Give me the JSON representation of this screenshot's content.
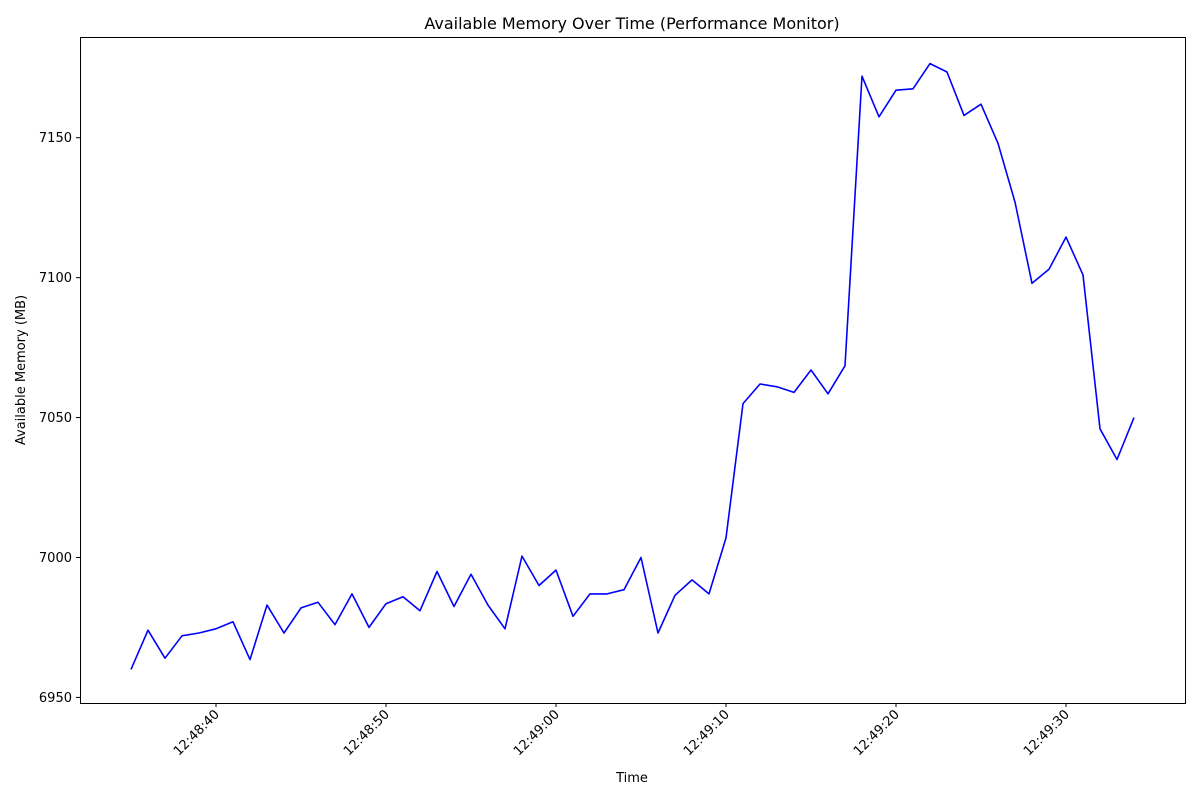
{
  "chart_data": {
    "type": "line",
    "title": "Available Memory Over Time (Performance Monitor)",
    "xlabel": "Time",
    "ylabel": "Available Memory (MB)",
    "x_tick_labels": [
      "12:48:40",
      "12:48:50",
      "12:49:00",
      "12:49:10",
      "12:49:20",
      "12:49:30"
    ],
    "y_ticks": [
      6950,
      7000,
      7050,
      7100,
      7150
    ],
    "ylim": [
      6948,
      7186
    ],
    "x_range": [
      "12:48:32",
      "12:49:37"
    ],
    "grid": false,
    "series": [
      {
        "color": "#0000ff",
        "x": [
          "12:48:35",
          "12:48:36",
          "12:48:37",
          "12:48:38",
          "12:48:39",
          "12:48:40",
          "12:48:41",
          "12:48:42",
          "12:48:43",
          "12:48:44",
          "12:48:45",
          "12:48:46",
          "12:48:47",
          "12:48:48",
          "12:48:49",
          "12:48:50",
          "12:48:51",
          "12:48:52",
          "12:48:53",
          "12:48:54",
          "12:48:55",
          "12:48:56",
          "12:48:57",
          "12:48:58",
          "12:48:59",
          "12:49:00",
          "12:49:01",
          "12:49:02",
          "12:49:03",
          "12:49:04",
          "12:49:05",
          "12:49:06",
          "12:49:07",
          "12:49:08",
          "12:49:09",
          "12:49:10",
          "12:49:11",
          "12:49:12",
          "12:49:13",
          "12:49:14",
          "12:49:15",
          "12:49:16",
          "12:49:17",
          "12:49:18",
          "12:49:19",
          "12:49:20",
          "12:49:21",
          "12:49:22",
          "12:49:23",
          "12:49:24",
          "12:49:25",
          "12:49:26",
          "12:49:27",
          "12:49:28",
          "12:49:29",
          "12:49:30",
          "12:49:31",
          "12:49:32",
          "12:49:33",
          "12:49:34"
        ],
        "values": [
          6960,
          6974,
          6964,
          6972,
          6973,
          6974.5,
          6977,
          6963.5,
          6983,
          6973,
          6982,
          6984,
          6976,
          6987,
          6975,
          6983.5,
          6986,
          6981,
          6995,
          6982.5,
          6994,
          6983,
          6974.5,
          7000.5,
          6990,
          6995.5,
          6979,
          6987,
          6987,
          6988.5,
          7000,
          6973,
          6986.5,
          6992,
          6987,
          7007,
          7055,
          7062,
          7061,
          7059,
          7067,
          7058.5,
          7068.5,
          7172,
          7157.5,
          7167,
          7167.5,
          7176.5,
          7173.5,
          7158,
          7162,
          7148,
          7127,
          7098,
          7103,
          7114.5,
          7101,
          7046,
          7035,
          7050
        ]
      }
    ]
  }
}
